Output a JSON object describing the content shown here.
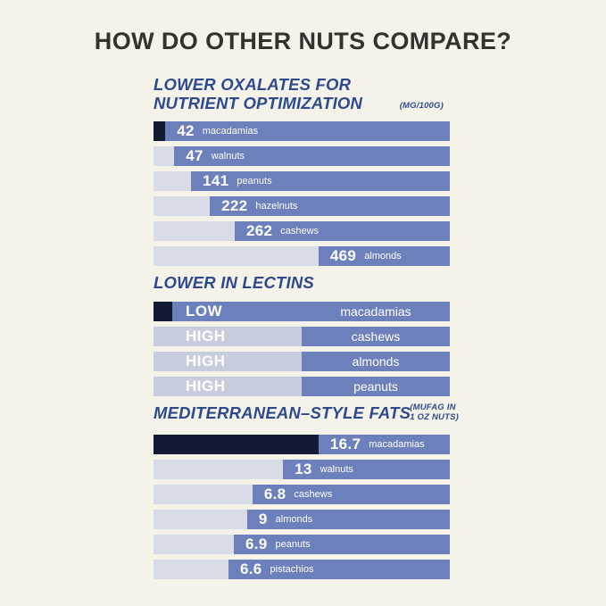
{
  "page": {
    "title": "HOW DO OTHER NUTS COMPARE?",
    "background": "#F5F2E9"
  },
  "colors": {
    "bar_blue": "#6C80BC",
    "segment_light": "#D8DCE6",
    "segment_light_lectin": "#C7CDDD",
    "segment_navy": "#121B33",
    "heading_blue": "#2C4A8C",
    "title_text": "#33322F",
    "bar_text": "#FFFFFF"
  },
  "chart_data": [
    {
      "type": "bar",
      "title": "LOWER OXALATES FOR NUTRIENT OPTIMIZATION",
      "unit_note": "(MG/100G)",
      "categories": [
        "macadamias",
        "walnuts",
        "peanuts",
        "hazelnuts",
        "cashews",
        "almonds"
      ],
      "values": [
        42,
        47,
        141,
        222,
        262,
        469
      ],
      "highlighted_category": "macadamias",
      "legend_position": "none",
      "grid": false
    },
    {
      "type": "bar",
      "title": "LOWER IN LECTINS",
      "categories": [
        "macadamias",
        "cashews",
        "almonds",
        "peanuts"
      ],
      "values": [
        "LOW",
        "HIGH",
        "HIGH",
        "HIGH"
      ],
      "highlighted_category": "macadamias",
      "legend_position": "none",
      "grid": false
    },
    {
      "type": "bar",
      "title": "MEDITERRANEAN–STYLE FATS",
      "unit_note": "(MUFAG IN 1 OZ NUTS)",
      "categories": [
        "macadamias",
        "walnuts",
        "cashews",
        "almonds",
        "peanuts",
        "pistachios"
      ],
      "values": [
        16.7,
        13,
        6.8,
        9,
        6.9,
        6.6
      ],
      "highlighted_category": "macadamias",
      "legend_position": "none",
      "grid": false
    }
  ],
  "sections": [
    {
      "heading1": "LOWER OXALATES FOR",
      "heading2": "NUTRIENT OPTIMIZATION",
      "note": "(MG/100G)",
      "rows": [
        {
          "value": "42",
          "label": "macadamias",
          "seg": "4%"
        },
        {
          "value": "47",
          "label": "walnuts",
          "seg": "7%"
        },
        {
          "value": "141",
          "label": "peanuts",
          "seg": "12.7%"
        },
        {
          "value": "222",
          "label": "hazelnuts",
          "seg": "19%"
        },
        {
          "value": "262",
          "label": "cashews",
          "seg": "27.4%"
        },
        {
          "value": "469",
          "label": "almonds",
          "seg": "55.7%"
        }
      ]
    },
    {
      "heading1": "LOWER IN LECTINS",
      "rows": [
        {
          "value": "LOW",
          "label": "macadamias",
          "seg": "6.3%"
        },
        {
          "value": "HIGH",
          "label": "cashews",
          "seg": "50%"
        },
        {
          "value": "HIGH",
          "label": "almonds",
          "seg": "50%"
        },
        {
          "value": "HIGH",
          "label": "peanuts",
          "seg": "50%"
        }
      ]
    },
    {
      "heading1": "MEDITERRANEAN–STYLE FATS",
      "note1": "(MUFAG IN",
      "note2": "1 OZ NUTS)",
      "rows": [
        {
          "value": "16.7",
          "label": "macadamias",
          "seg": "55.7%"
        },
        {
          "value": "13",
          "label": "walnuts",
          "seg": "43.7%"
        },
        {
          "value": "6.8",
          "label": "cashews",
          "seg": "33.4%"
        },
        {
          "value": "9",
          "label": "almonds",
          "seg": "31.6%"
        },
        {
          "value": "6.9",
          "label": "peanuts",
          "seg": "27.1%"
        },
        {
          "value": "6.6",
          "label": "pistachios",
          "seg": "25.3%"
        }
      ]
    }
  ]
}
